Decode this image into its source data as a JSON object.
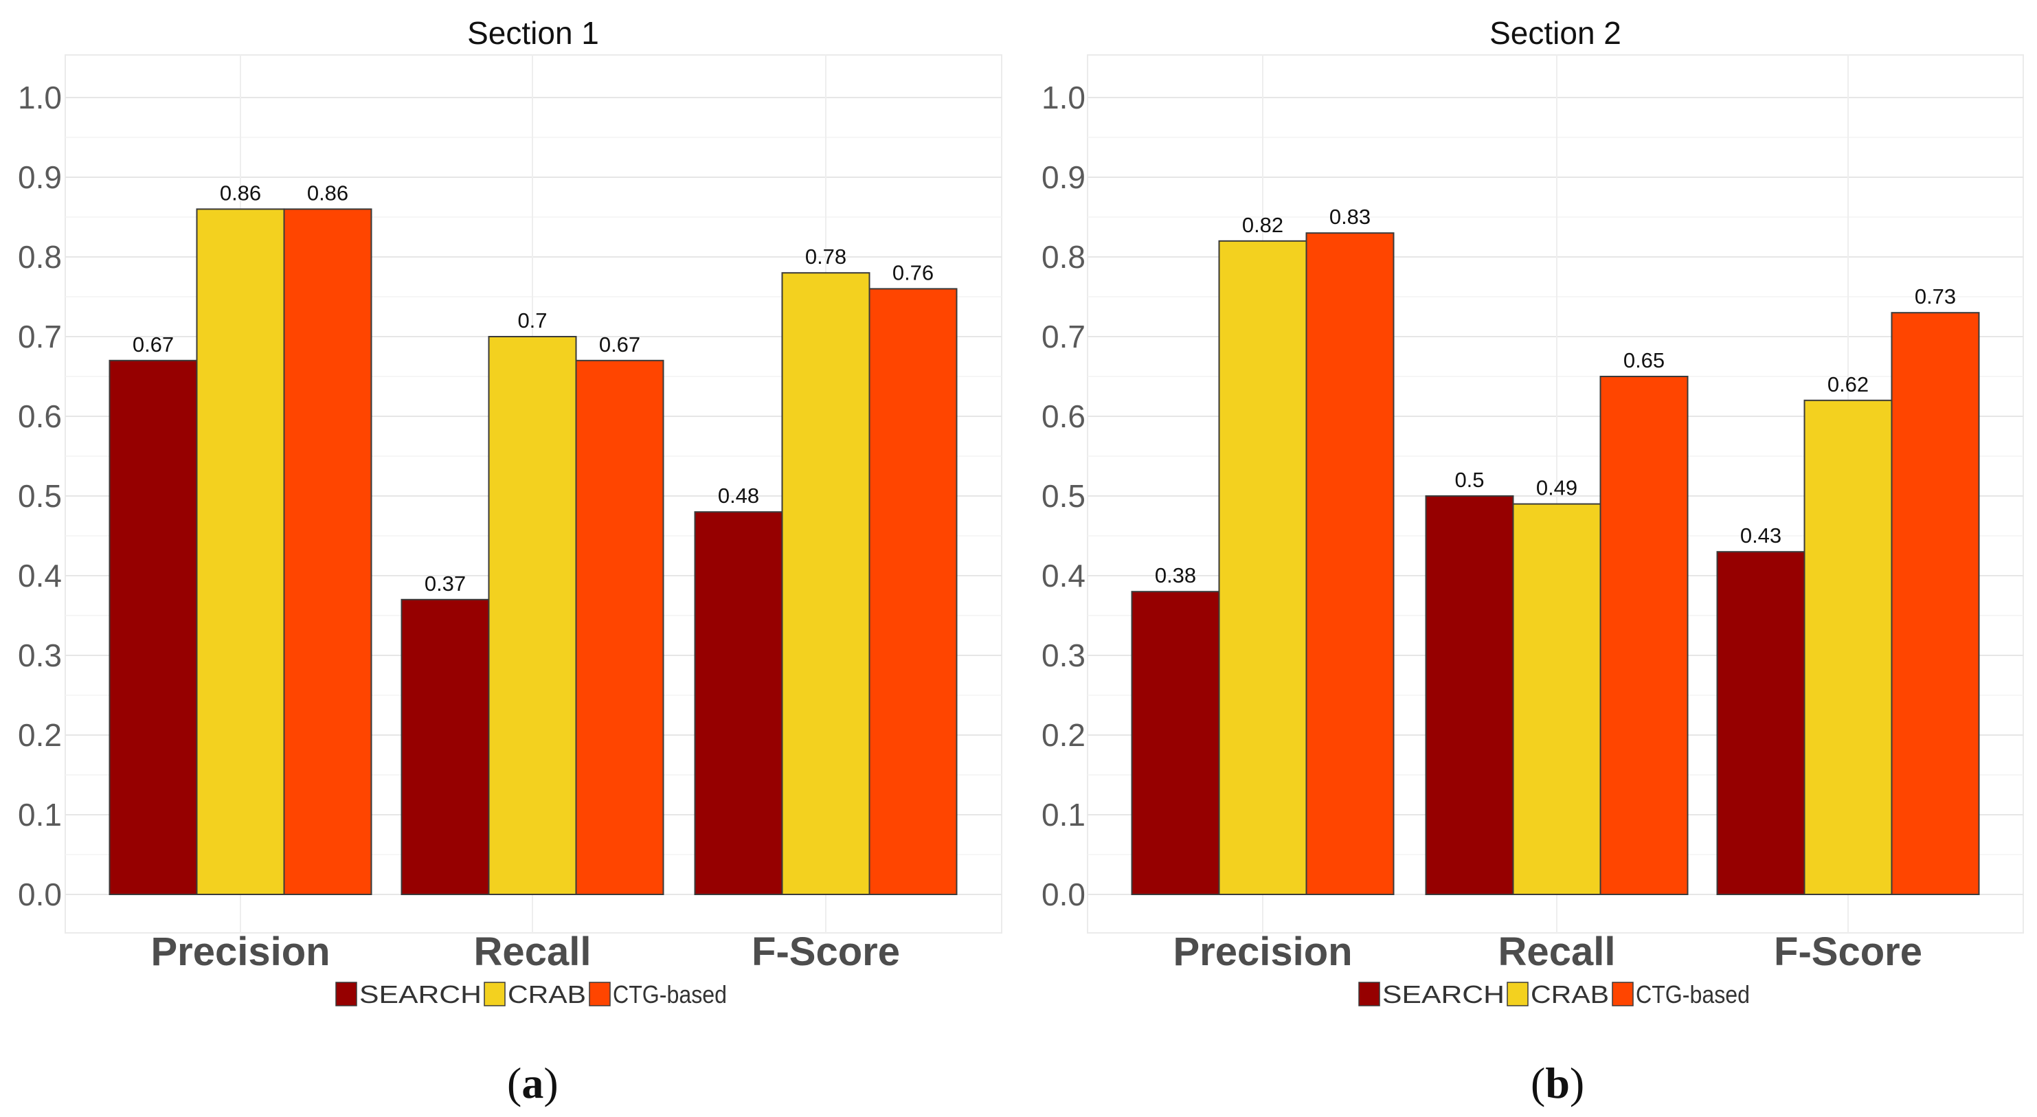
{
  "chart_data": [
    {
      "type": "bar",
      "title": "Section 1",
      "subfigure": [
        "(",
        "a",
        ")"
      ],
      "categories": [
        "Precision",
        "Recall",
        "F-Score"
      ],
      "series": [
        {
          "name": "SEARCH",
          "color": "#960000",
          "values": [
            0.67,
            0.37,
            0.48
          ],
          "labels": [
            "0.67",
            "0.37",
            "0.48"
          ]
        },
        {
          "name": "CRAB",
          "color": "#f3d11f",
          "values": [
            0.86,
            0.7,
            0.78
          ],
          "labels": [
            "0.86",
            "0.7",
            "0.78"
          ]
        },
        {
          "name": "CTG-based",
          "color": "#ff4500",
          "values": [
            0.86,
            0.67,
            0.76
          ],
          "labels": [
            "0.86",
            "0.67",
            "0.76"
          ]
        }
      ],
      "ylim": [
        0,
        1.0
      ],
      "yticks": [
        "0.0",
        "0.1",
        "0.2",
        "0.3",
        "0.4",
        "0.5",
        "0.6",
        "0.7",
        "0.8",
        "0.9",
        "1.0"
      ],
      "grid": true,
      "legend": "bottom"
    },
    {
      "type": "bar",
      "title": "Section 2",
      "subfigure": [
        "(",
        "b",
        ")"
      ],
      "categories": [
        "Precision",
        "Recall",
        "F-Score"
      ],
      "series": [
        {
          "name": "SEARCH",
          "color": "#960000",
          "values": [
            0.38,
            0.5,
            0.43
          ],
          "labels": [
            "0.38",
            "0.5",
            "0.43"
          ]
        },
        {
          "name": "CRAB",
          "color": "#f3d11f",
          "values": [
            0.82,
            0.49,
            0.62
          ],
          "labels": [
            "0.82",
            "0.49",
            "0.62"
          ]
        },
        {
          "name": "CTG-based",
          "color": "#ff4500",
          "values": [
            0.83,
            0.65,
            0.73
          ],
          "labels": [
            "0.83",
            "0.65",
            "0.73"
          ]
        }
      ],
      "ylim": [
        0,
        1.0
      ],
      "yticks": [
        "0.0",
        "0.1",
        "0.2",
        "0.3",
        "0.4",
        "0.5",
        "0.6",
        "0.7",
        "0.8",
        "0.9",
        "1.0"
      ],
      "grid": true,
      "legend": "bottom"
    }
  ]
}
